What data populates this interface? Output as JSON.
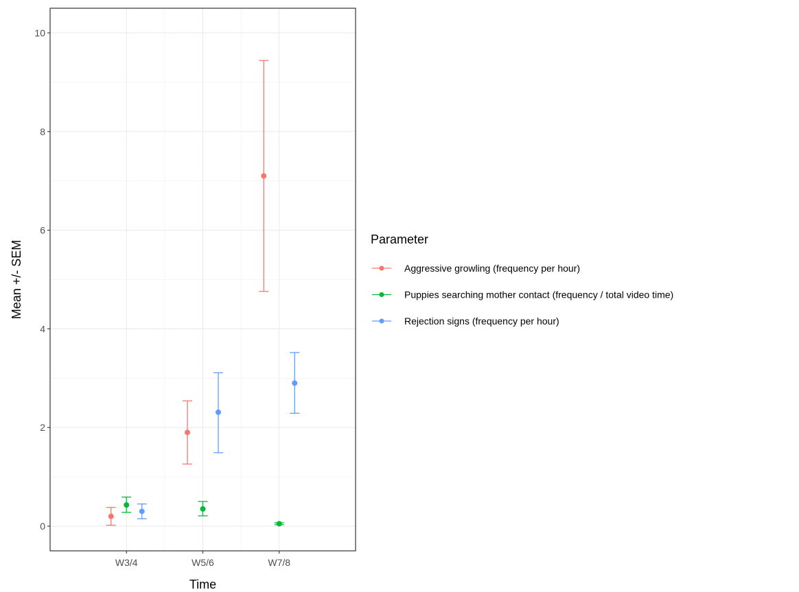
{
  "chart_data": {
    "type": "scatter",
    "title": "",
    "xlabel": "Time",
    "ylabel": "Mean +/- SEM",
    "categories": [
      "W3/4",
      "W5/6",
      "W7/8"
    ],
    "ylim": [
      -0.5,
      10.5
    ],
    "yticks": [
      0,
      2,
      4,
      6,
      8,
      10
    ],
    "grid": true,
    "legend_position": "right",
    "legend_title": "Parameter",
    "series": [
      {
        "name": "Aggressive growling (frequency per hour)",
        "color": "#F8766D",
        "mean": [
          0.2,
          1.9,
          7.1
        ],
        "lower": [
          0.02,
          1.26,
          4.76
        ],
        "upper": [
          0.38,
          2.54,
          9.44
        ]
      },
      {
        "name": "Puppies searching mother contact (frequency / total video time)",
        "color": "#00BA38",
        "mean": [
          0.43,
          0.35,
          0.05
        ],
        "lower": [
          0.28,
          0.21,
          0.03
        ],
        "upper": [
          0.59,
          0.5,
          0.07
        ]
      },
      {
        "name": "Rejection signs (frequency per hour)",
        "color": "#619CFF",
        "mean": [
          0.3,
          2.31,
          2.9
        ],
        "lower": [
          0.15,
          1.49,
          2.29
        ],
        "upper": [
          0.45,
          3.11,
          3.52
        ]
      }
    ]
  }
}
